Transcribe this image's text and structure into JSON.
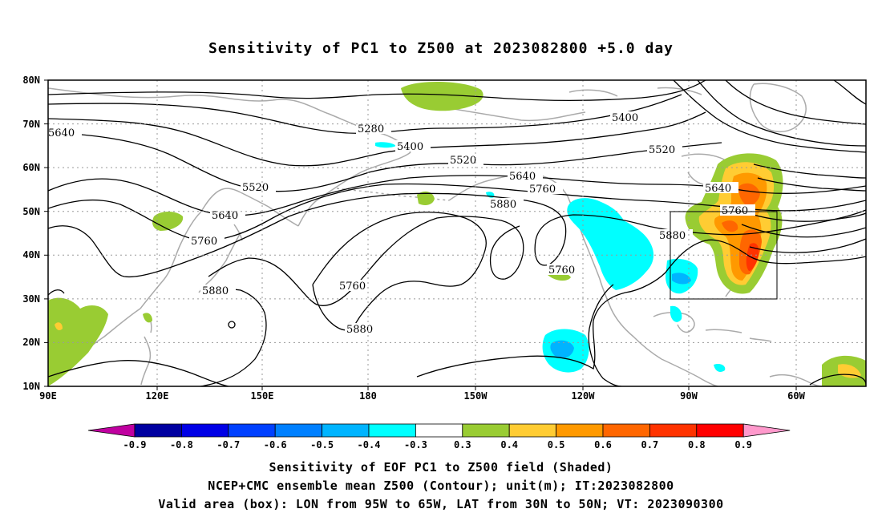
{
  "title": "Sensitivity of PC1 to Z500 at 2023082800 +5.0 day",
  "lat_labels": [
    "80N",
    "70N",
    "60N",
    "50N",
    "40N",
    "30N",
    "20N",
    "10N"
  ],
  "lon_labels": [
    "90E",
    "120E",
    "150E",
    "180",
    "150W",
    "120W",
    "90W",
    "60W"
  ],
  "contour_labels": [
    "5640",
    "5280",
    "5400",
    "5400",
    "5520",
    "5520",
    "5520",
    "5640",
    "5640",
    "5640",
    "5760",
    "5760",
    "5760",
    "5760",
    "5760",
    "5880",
    "5880",
    "5880",
    "5880"
  ],
  "colorbar": {
    "ticks": [
      "-0.9",
      "-0.8",
      "-0.7",
      "-0.6",
      "-0.5",
      "-0.4",
      "-0.3",
      "0.3",
      "0.4",
      "0.5",
      "0.6",
      "0.7",
      "0.8",
      "0.9"
    ],
    "colors": [
      "#0000a0",
      "#0000e6",
      "#0040ff",
      "#0080ff",
      "#00b4ff",
      "#00ffff",
      "#ffffff",
      "#99cc33",
      "#ffcc33",
      "#ff9900",
      "#ff6600",
      "#ff3300",
      "#ff0000"
    ],
    "low_end_color": "#c000a0",
    "high_end_color": "#ff99cc"
  },
  "valid_box": {
    "lon_from": "95W",
    "lon_to": "65W",
    "lat_from": "30N",
    "lat_to": "50N"
  },
  "captions": [
    "Sensitivity of EOF PC1 to Z500 field (Shaded)",
    "NCEP+CMC ensemble mean Z500 (Contour); unit(m); IT:2023082800",
    "Valid area (box): LON from 95W to 65W, LAT from 30N to 50N; VT: 2023090300"
  ]
}
